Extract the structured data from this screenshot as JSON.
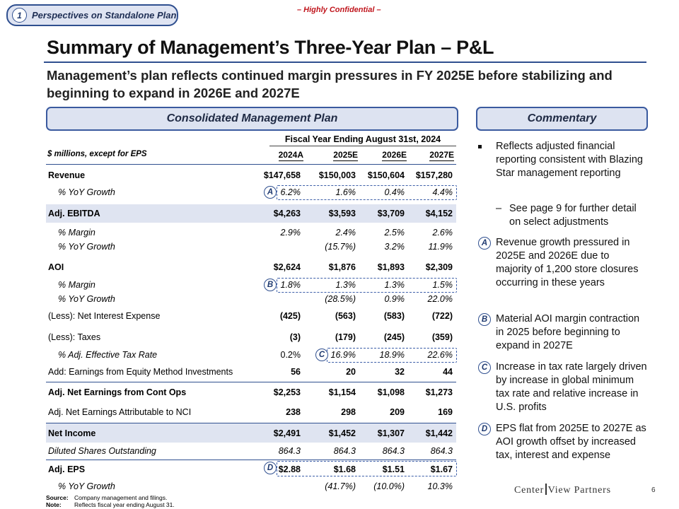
{
  "header": {
    "section_number": "1",
    "section_label": "Perspectives on Standalone Plan",
    "confidential": "– Highly Confidential –",
    "title": "Summary of Management’s Three-Year Plan – P&L",
    "subtitle": "Management’s plan reflects continued margin pressures in FY 2025E before stabilizing and beginning to expand in 2026E and 2027E"
  },
  "left_panel": {
    "title": "Consolidated Management Plan",
    "fy_header": "Fiscal Year Ending August 31st, 2024",
    "units_label": "$ millions, except for EPS",
    "columns": [
      "2024A",
      "2025E",
      "2026E",
      "2027E"
    ]
  },
  "table": {
    "revenue": {
      "label": "Revenue",
      "values": [
        "$147,658",
        "$150,003",
        "$150,604",
        "$157,280"
      ]
    },
    "revenue_growth": {
      "label": "% YoY Growth",
      "values": [
        "6.2%",
        "1.6%",
        "0.4%",
        "4.4%"
      ]
    },
    "ebitda": {
      "label": "Adj. EBITDA",
      "values": [
        "$4,263",
        "$3,593",
        "$3,709",
        "$4,152"
      ]
    },
    "ebitda_margin": {
      "label": "% Margin",
      "values": [
        "2.9%",
        "2.4%",
        "2.5%",
        "2.6%"
      ]
    },
    "ebitda_growth": {
      "label": "% YoY Growth",
      "values": [
        "",
        "(15.7%)",
        "3.2%",
        "11.9%"
      ]
    },
    "aoi": {
      "label": "AOI",
      "values": [
        "$2,624",
        "$1,876",
        "$1,893",
        "$2,309"
      ]
    },
    "aoi_margin": {
      "label": "% Margin",
      "values": [
        "1.8%",
        "1.3%",
        "1.3%",
        "1.5%"
      ]
    },
    "aoi_growth": {
      "label": "% YoY Growth",
      "values": [
        "",
        "(28.5%)",
        "0.9%",
        "22.0%"
      ]
    },
    "interest": {
      "label": "(Less): Net Interest Expense",
      "values": [
        "(425)",
        "(563)",
        "(583)",
        "(722)"
      ]
    },
    "taxes": {
      "label": "(Less): Taxes",
      "values": [
        "(3)",
        "(179)",
        "(245)",
        "(359)"
      ]
    },
    "tax_rate": {
      "label": "% Adj. Effective Tax Rate",
      "values": [
        "0.2%",
        "16.9%",
        "18.9%",
        "22.6%"
      ]
    },
    "equity": {
      "label": "Add: Earnings from Equity Method Investments",
      "values": [
        "56",
        "20",
        "32",
        "44"
      ]
    },
    "net_earnings": {
      "label": "Adj. Net Earnings from Cont Ops",
      "values": [
        "$2,253",
        "$1,154",
        "$1,098",
        "$1,273"
      ]
    },
    "nci": {
      "label": "Adj. Net Earnings Attributable to NCI",
      "values": [
        "238",
        "298",
        "209",
        "169"
      ]
    },
    "net_income": {
      "label": "Net Income",
      "values": [
        "$2,491",
        "$1,452",
        "$1,307",
        "$1,442"
      ]
    },
    "shares": {
      "label": "Diluted Shares Outstanding",
      "values": [
        "864.3",
        "864.3",
        "864.3",
        "864.3"
      ]
    },
    "eps": {
      "label": "Adj. EPS",
      "values": [
        "$2.88",
        "$1.68",
        "$1.51",
        "$1.67"
      ]
    },
    "eps_growth": {
      "label": "% YoY Growth",
      "values": [
        "",
        "(41.7%)",
        "(10.0%)",
        "10.3%"
      ]
    }
  },
  "markers": {
    "a": "A",
    "b": "B",
    "c": "C",
    "d": "D"
  },
  "commentary": {
    "title": "Commentary",
    "bullet1": "Reflects adjusted financial reporting consistent with Blazing Star management reporting",
    "sub_dash": "–",
    "sub1": "See page 9 for further detail on select adjustments",
    "a": "Revenue growth pressured in 2025E and 2026E due to majority of 1,200 store closures occurring in these years",
    "b": "Material AOI margin contraction in 2025 before beginning to expand in 2027E",
    "c": "Increase in tax rate largely driven by increase in global minimum tax rate and relative increase in U.S. profits",
    "d": "EPS flat from 2025E to 2027E as AOI growth offset by increased tax, interest and expense"
  },
  "footer": {
    "source_key": "Source:",
    "source_text": "Company management and filings.",
    "note_key": "Note:",
    "note_text": "Reflects fiscal year ending August 31.",
    "logo_left": "Center",
    "logo_right": "View Partners",
    "page": "6"
  },
  "colors": {
    "accent": "#2f4f8f",
    "shade": "#dfe4f1",
    "confidential": "#c0161d"
  }
}
